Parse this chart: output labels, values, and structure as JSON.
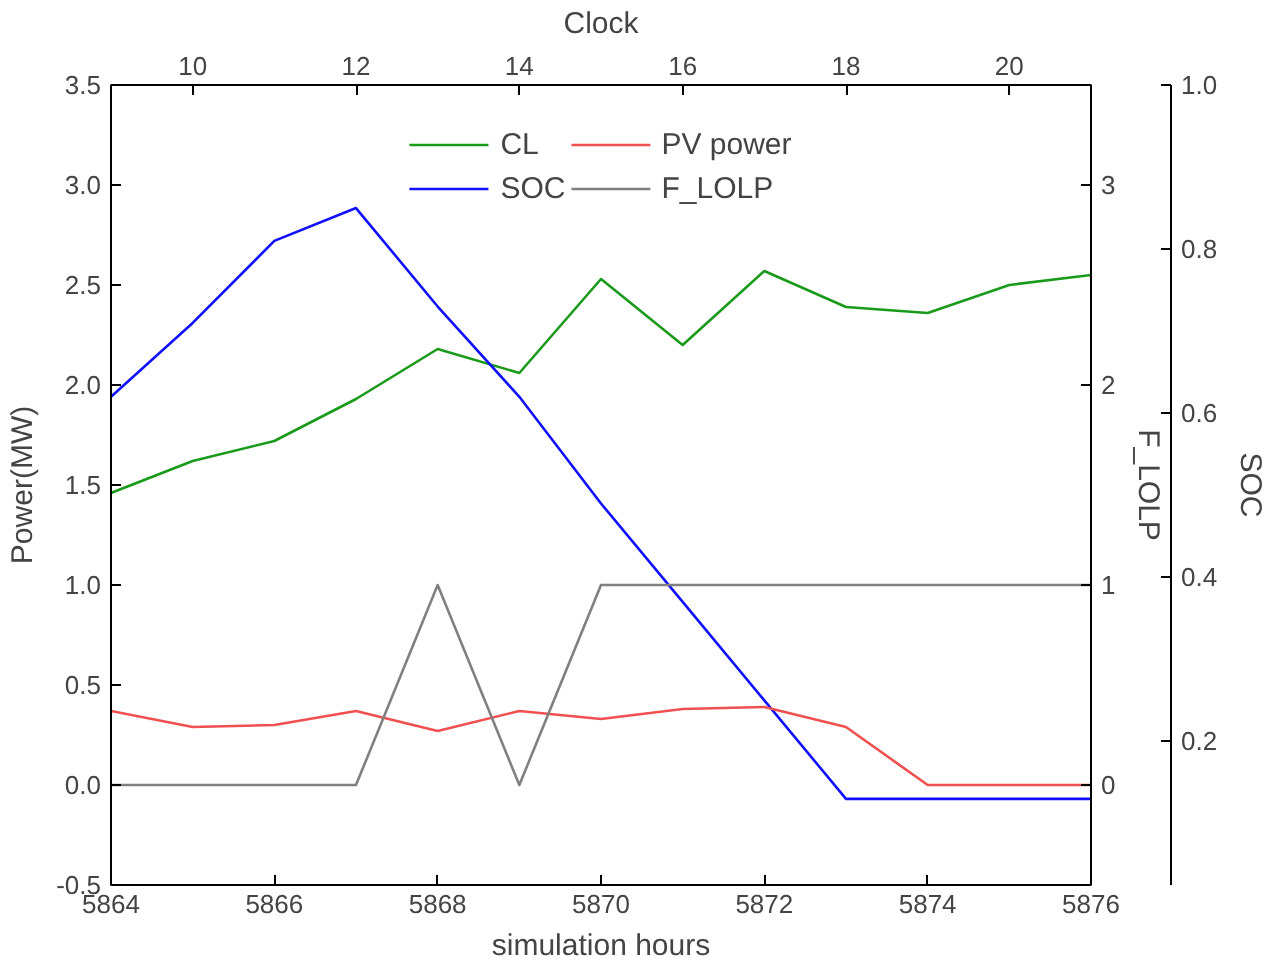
{
  "chart_data": {
    "type": "line",
    "xlabel": "simulation hours",
    "ylabel": "Power(MW)",
    "y2label": "F_LOLP",
    "y3label": "SOC",
    "x2label": "Clock",
    "x": [
      5864,
      5865,
      5866,
      5867,
      5868,
      5869,
      5870,
      5871,
      5872,
      5873,
      5874,
      5875,
      5876
    ],
    "xlim": [
      5864,
      5876
    ],
    "xticks": [
      5864,
      5866,
      5868,
      5870,
      5872,
      5874,
      5876
    ],
    "x2lim": [
      9,
      21
    ],
    "x2ticks": [
      10,
      12,
      14,
      16,
      18,
      20
    ],
    "ylim": [
      -0.5,
      3.5
    ],
    "yticks": [
      {
        "value": -0.5,
        "label": "-0.5"
      },
      {
        "value": 0,
        "label": "0.0"
      },
      0.5,
      {
        "value": 1,
        "label": "1.0"
      },
      1.5,
      {
        "value": 2,
        "label": "2.0"
      },
      2.5,
      {
        "value": 3,
        "label": "3.0"
      },
      3.5
    ],
    "y2lim": [
      -0.5,
      3.5
    ],
    "y2ticks": [
      0,
      1,
      2,
      3
    ],
    "y3lim": [
      0.025,
      1.0
    ],
    "y3ticks": [
      0.2,
      0.4,
      0.6,
      0.8,
      {
        "value": 1.0,
        "label": "1.0"
      }
    ],
    "series": [
      {
        "name": "CL",
        "color": "#1a9a1a",
        "values": [
          1.46,
          1.62,
          1.72,
          1.93,
          2.18,
          2.06,
          2.53,
          2.2,
          2.57,
          2.39,
          2.36,
          2.5,
          2.55
        ]
      },
      {
        "name": "SOC",
        "color": "#1010ff",
        "axis": "y3",
        "values": [
          0.62,
          0.71,
          0.81,
          0.85,
          0.73,
          0.62,
          0.49,
          0.37,
          0.25,
          0.13,
          0.13,
          0.13,
          0.13
        ]
      },
      {
        "name": "PV power",
        "color": "#f05050",
        "values": [
          0.37,
          0.29,
          0.3,
          0.37,
          0.27,
          0.37,
          0.33,
          0.38,
          0.39,
          0.29,
          0.0,
          0.0,
          0.0
        ]
      },
      {
        "name": "F_LOLP",
        "color": "#808080",
        "axis": "y2",
        "values": [
          0,
          0,
          0,
          0,
          1,
          0,
          1,
          1,
          1,
          1,
          1,
          1,
          1
        ]
      }
    ],
    "legend": "top",
    "grid": false,
    "marker": "none",
    "line_style": "solid"
  }
}
